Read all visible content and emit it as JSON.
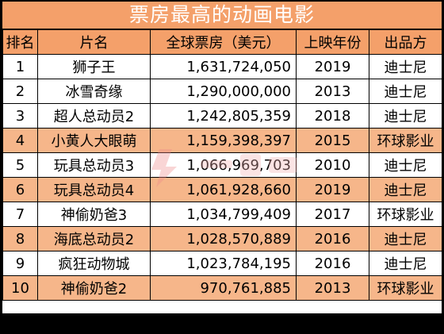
{
  "title": "票房最高的动画电影",
  "headers": [
    "排名",
    "片名",
    "全球票房（美元）",
    "上映年份",
    "出品方"
  ],
  "rows": [
    {
      "rank": "1",
      "name": "狮子王",
      "gross": "1,631,724,050",
      "year": "2019",
      "studio": "迪士尼"
    },
    {
      "rank": "2",
      "name": "冰雪奇缘",
      "gross": "1,290,000,000",
      "year": "2013",
      "studio": "迪士尼"
    },
    {
      "rank": "3",
      "name": "超人总动员2",
      "gross": "1,242,805,359",
      "year": "2018",
      "studio": "迪士尼"
    },
    {
      "rank": "4",
      "name": "小黄人大眼萌",
      "gross": "1,159,398,397",
      "year": "2015",
      "studio": "环球影业"
    },
    {
      "rank": "5",
      "name": "玩具总动员3",
      "gross": "1,066,969,703",
      "year": "2010",
      "studio": "迪士尼"
    },
    {
      "rank": "6",
      "name": "玩具总动员4",
      "gross": "1,061,928,660",
      "year": "2019",
      "studio": "迪士尼"
    },
    {
      "rank": "7",
      "name": "神偷奶爸3",
      "gross": "1,034,799,409",
      "year": "2017",
      "studio": "环球影业"
    },
    {
      "rank": "8",
      "name": "海底总动员2",
      "gross": "1,028,570,889",
      "year": "2016",
      "studio": "迪士尼"
    },
    {
      "rank": "9",
      "name": "疯狂动物城",
      "gross": "1,023,784,195",
      "year": "2016",
      "studio": "迪士尼"
    },
    {
      "rank": "10",
      "name": "神偷奶爸2",
      "gross": "970,761,885",
      "year": "2013",
      "studio": "环球影业"
    }
  ],
  "colors": {
    "header_bg": "#f4a06a",
    "even_row_bg": "#f6b68a",
    "odd_row_bg": "#ffffff",
    "frame_bg": "#000000"
  }
}
